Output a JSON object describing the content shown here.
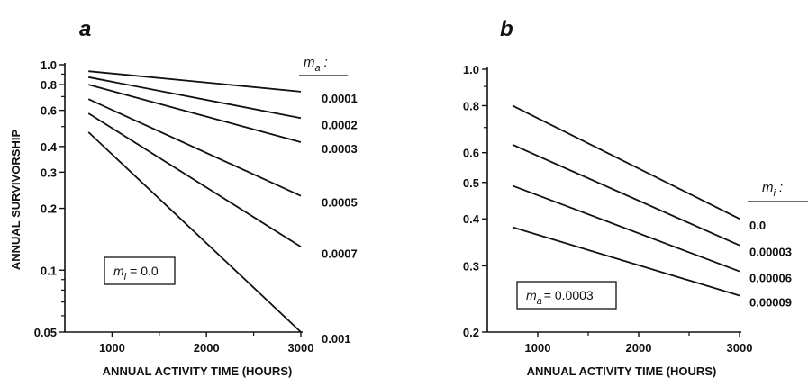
{
  "colors": {
    "ink": "#111111",
    "background": "#ffffff"
  },
  "chart_data": [
    {
      "type": "line",
      "panel": "a",
      "xlabel": "ANNUAL ACTIVITY TIME (HOURS)",
      "ylabel": "ANNUAL SURVIVORSHIP",
      "yscale": "log",
      "xlim": [
        500,
        3000
      ],
      "ylim": [
        0.05,
        1.0
      ],
      "xticks": [
        1000,
        2000,
        3000
      ],
      "yticks": [
        0.05,
        0.1,
        0.2,
        0.3,
        0.4,
        0.6,
        0.8,
        1.0
      ],
      "ytick_labels": [
        "0.05",
        "0.1",
        "0.2",
        "0.3",
        "0.4",
        "0.6",
        "0.8",
        "1.0"
      ],
      "legend_header": "m_a :",
      "legend_header_main": "m",
      "legend_header_sub": "a",
      "legend_header_suffix": ":",
      "annotation": "m_i = 0.0",
      "annotation_main": "m",
      "annotation_sub": "i",
      "annotation_rest": "= 0.0",
      "series": [
        {
          "name": "0.0001",
          "x": [
            750,
            3000
          ],
          "y": [
            0.93,
            0.74
          ]
        },
        {
          "name": "0.0002",
          "x": [
            750,
            3000
          ],
          "y": [
            0.87,
            0.55
          ]
        },
        {
          "name": "0.0003",
          "x": [
            750,
            3000
          ],
          "y": [
            0.8,
            0.42
          ]
        },
        {
          "name": "0.0005",
          "x": [
            750,
            3000
          ],
          "y": [
            0.68,
            0.23
          ]
        },
        {
          "name": "0.0007",
          "x": [
            750,
            3000
          ],
          "y": [
            0.58,
            0.13
          ]
        },
        {
          "name": "0.001",
          "x": [
            750,
            3000
          ],
          "y": [
            0.47,
            0.05
          ]
        }
      ]
    },
    {
      "type": "line",
      "panel": "b",
      "xlabel": "ANNUAL ACTIVITY TIME (HOURS)",
      "ylabel": "",
      "yscale": "log",
      "xlim": [
        500,
        3000
      ],
      "ylim": [
        0.2,
        1.0
      ],
      "xticks": [
        1000,
        2000,
        3000
      ],
      "yticks": [
        0.2,
        0.3,
        0.4,
        0.5,
        0.6,
        0.8,
        1.0
      ],
      "ytick_labels": [
        "0.2",
        "0.3",
        "0.4",
        "0.5",
        "0.6",
        "0.8",
        "1.0"
      ],
      "legend_header": "m_i :",
      "legend_header_main": "m",
      "legend_header_sub": "i",
      "legend_header_suffix": ":",
      "annotation": "m_a = 0.0003",
      "annotation_main": "m",
      "annotation_sub": "a",
      "annotation_rest": "= 0.0003",
      "series": [
        {
          "name": "0.0",
          "x": [
            750,
            3000
          ],
          "y": [
            0.8,
            0.4
          ]
        },
        {
          "name": "0.00003",
          "x": [
            750,
            3000
          ],
          "y": [
            0.63,
            0.34
          ]
        },
        {
          "name": "0.00006",
          "x": [
            750,
            3000
          ],
          "y": [
            0.49,
            0.29
          ]
        },
        {
          "name": "0.00009",
          "x": [
            750,
            3000
          ],
          "y": [
            0.38,
            0.25
          ]
        }
      ]
    }
  ]
}
